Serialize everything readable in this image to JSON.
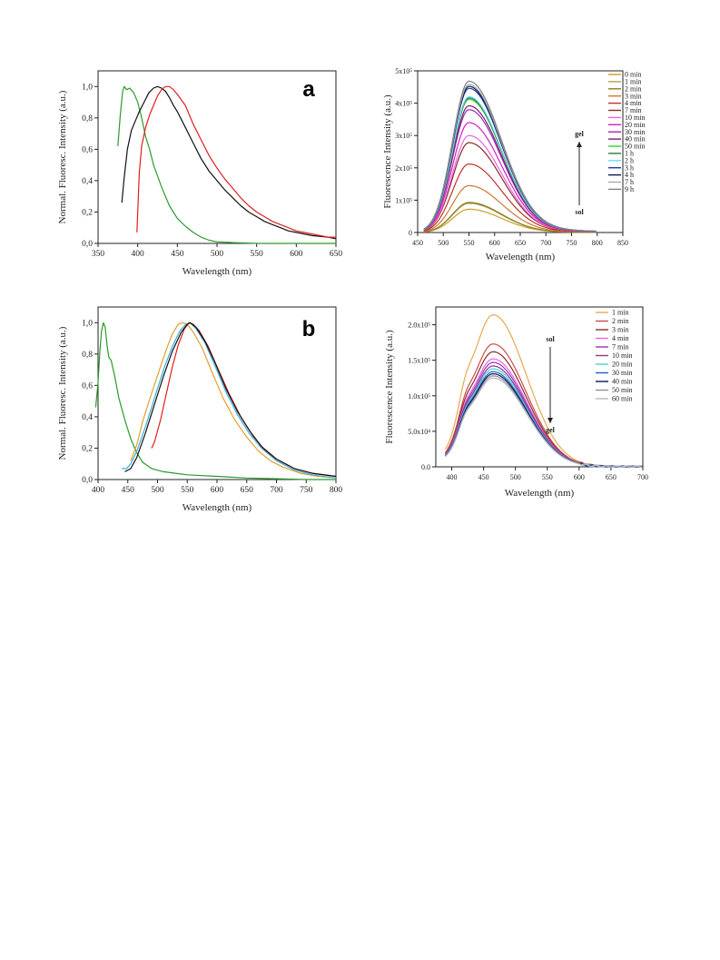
{
  "chart_data": [
    {
      "type": "line",
      "panel_letter": "a",
      "xlabel": "Wavelength (nm)",
      "ylabel": "Normal. Fluoresc. Intensity (a.u.)",
      "xlim": [
        350,
        650
      ],
      "ylim": [
        0,
        1.1
      ],
      "x_ticks": [
        "350",
        "400",
        "450",
        "500",
        "550",
        "600",
        "650"
      ],
      "y_ticks": [
        "0,0",
        "0,2",
        "0,4",
        "0,6",
        "0,8",
        "1,0"
      ],
      "series": [
        {
          "color": "#2a9a2a",
          "points": [
            [
              375,
              0.62
            ],
            [
              378,
              0.82
            ],
            [
              381,
              0.97
            ],
            [
              383,
              1.0
            ],
            [
              386,
              0.98
            ],
            [
              390,
              0.99
            ],
            [
              395,
              0.96
            ],
            [
              400,
              0.9
            ],
            [
              405,
              0.8
            ],
            [
              410,
              0.68
            ],
            [
              415,
              0.6
            ],
            [
              420,
              0.5
            ],
            [
              425,
              0.43
            ],
            [
              430,
              0.36
            ],
            [
              440,
              0.24
            ],
            [
              450,
              0.16
            ],
            [
              460,
              0.11
            ],
            [
              470,
              0.07
            ],
            [
              480,
              0.04
            ],
            [
              490,
              0.02
            ],
            [
              500,
              0.01
            ],
            [
              520,
              0.005
            ],
            [
              550,
              0.0
            ],
            [
              600,
              0.0
            ],
            [
              650,
              0.0
            ]
          ]
        },
        {
          "color": "#111111",
          "points": [
            [
              380,
              0.26
            ],
            [
              383,
              0.42
            ],
            [
              387,
              0.6
            ],
            [
              392,
              0.72
            ],
            [
              397,
              0.78
            ],
            [
              402,
              0.84
            ],
            [
              408,
              0.9
            ],
            [
              414,
              0.96
            ],
            [
              420,
              0.99
            ],
            [
              425,
              1.0
            ],
            [
              430,
              0.99
            ],
            [
              435,
              0.97
            ],
            [
              440,
              0.93
            ],
            [
              445,
              0.88
            ],
            [
              450,
              0.84
            ],
            [
              460,
              0.74
            ],
            [
              470,
              0.64
            ],
            [
              480,
              0.54
            ],
            [
              490,
              0.46
            ],
            [
              500,
              0.4
            ],
            [
              510,
              0.34
            ],
            [
              520,
              0.29
            ],
            [
              530,
              0.24
            ],
            [
              540,
              0.2
            ],
            [
              550,
              0.17
            ],
            [
              560,
              0.14
            ],
            [
              570,
              0.12
            ],
            [
              580,
              0.1
            ],
            [
              590,
              0.08
            ],
            [
              600,
              0.07
            ],
            [
              620,
              0.05
            ],
            [
              640,
              0.04
            ],
            [
              650,
              0.03
            ]
          ]
        },
        {
          "color": "#e0201e",
          "points": [
            [
              399,
              0.07
            ],
            [
              400,
              0.2
            ],
            [
              402,
              0.45
            ],
            [
              405,
              0.62
            ],
            [
              410,
              0.74
            ],
            [
              415,
              0.82
            ],
            [
              420,
              0.88
            ],
            [
              425,
              0.94
            ],
            [
              430,
              0.98
            ],
            [
              435,
              1.0
            ],
            [
              440,
              1.0
            ],
            [
              445,
              0.98
            ],
            [
              450,
              0.95
            ],
            [
              460,
              0.88
            ],
            [
              470,
              0.76
            ],
            [
              480,
              0.66
            ],
            [
              490,
              0.56
            ],
            [
              500,
              0.48
            ],
            [
              510,
              0.41
            ],
            [
              520,
              0.35
            ],
            [
              530,
              0.29
            ],
            [
              540,
              0.24
            ],
            [
              550,
              0.2
            ],
            [
              560,
              0.17
            ],
            [
              570,
              0.14
            ],
            [
              580,
              0.12
            ],
            [
              590,
              0.1
            ],
            [
              600,
              0.08
            ],
            [
              620,
              0.06
            ],
            [
              640,
              0.04
            ],
            [
              650,
              0.04
            ]
          ]
        }
      ]
    },
    {
      "type": "line",
      "xlabel": "Wavelength (nm)",
      "ylabel": "Fluorescence Intensity (a.u.)",
      "xlim": [
        450,
        850
      ],
      "ylim": [
        0,
        500000
      ],
      "x_ticks": [
        "450",
        "500",
        "550",
        "600",
        "650",
        "700",
        "750",
        "800",
        "850"
      ],
      "y_ticks": [
        "0",
        "1x10⁵",
        "2x10⁵",
        "3x10⁵",
        "4x10⁵",
        "5x10⁵"
      ],
      "annotations": {
        "top": "gel",
        "bottom": "sol",
        "arrow": "up"
      },
      "peak_x": 550,
      "series": [
        {
          "name": "0 min",
          "color": "#c8a028",
          "peak": 72000
        },
        {
          "name": "1 min",
          "color": "#b0a050",
          "peak": 90000
        },
        {
          "name": "2 min",
          "color": "#8a8020",
          "peak": 93000
        },
        {
          "name": "3 min",
          "color": "#d07830",
          "peak": 145000
        },
        {
          "name": "4 min",
          "color": "#c03030",
          "peak": 212000
        },
        {
          "name": "7 min",
          "color": "#8a2b2b",
          "peak": 278000
        },
        {
          "name": "10 min",
          "color": "#ee66dd",
          "peak": 300000
        },
        {
          "name": "20 min",
          "color": "#d020c0",
          "peak": 340000
        },
        {
          "name": "30 min",
          "color": "#9a2ab0",
          "peak": 380000
        },
        {
          "name": "40 min",
          "color": "#7a1a7a",
          "peak": 392000
        },
        {
          "name": "50 min",
          "color": "#30d030",
          "peak": 412000
        },
        {
          "name": "1 h",
          "color": "#2a7a40",
          "peak": 416000
        },
        {
          "name": "2 h",
          "color": "#70d8f0",
          "peak": 420000
        },
        {
          "name": "3 h",
          "color": "#1a3ab0",
          "peak": 446000
        },
        {
          "name": "4 h",
          "color": "#0a1a4a",
          "peak": 452000
        },
        {
          "name": "7 h",
          "color": "#a8a8a8",
          "peak": 458000
        },
        {
          "name": "9 h",
          "color": "#808080",
          "peak": 468000
        }
      ]
    },
    {
      "type": "line",
      "panel_letter": "b",
      "xlabel": "Wavelength (nm)",
      "ylabel": "Normal. Fluoresc. Intensity (a.u.)",
      "xlim": [
        400,
        800
      ],
      "ylim": [
        0,
        1.1
      ],
      "x_ticks": [
        "400",
        "450",
        "500",
        "550",
        "600",
        "650",
        "700",
        "750",
        "800"
      ],
      "y_ticks": [
        "0,0",
        "0,2",
        "0,4",
        "0,6",
        "0,8",
        "1,0"
      ],
      "series": [
        {
          "color": "#2a9a2a",
          "points": [
            [
              396,
              0.46
            ],
            [
              400,
              0.62
            ],
            [
              403,
              0.82
            ],
            [
              406,
              0.95
            ],
            [
              409,
              1.0
            ],
            [
              412,
              0.97
            ],
            [
              415,
              0.86
            ],
            [
              418,
              0.78
            ],
            [
              422,
              0.76
            ],
            [
              428,
              0.66
            ],
            [
              435,
              0.52
            ],
            [
              445,
              0.38
            ],
            [
              455,
              0.26
            ],
            [
              465,
              0.17
            ],
            [
              475,
              0.11
            ],
            [
              490,
              0.07
            ],
            [
              510,
              0.05
            ],
            [
              530,
              0.04
            ],
            [
              550,
              0.03
            ],
            [
              600,
              0.02
            ],
            [
              650,
              0.01
            ],
            [
              700,
              0.005
            ],
            [
              750,
              0.0
            ],
            [
              800,
              0.0
            ]
          ]
        },
        {
          "color": "#e2a030",
          "points": [
            [
              455,
              0.12
            ],
            [
              465,
              0.22
            ],
            [
              475,
              0.37
            ],
            [
              490,
              0.55
            ],
            [
              505,
              0.72
            ],
            [
              515,
              0.83
            ],
            [
              525,
              0.93
            ],
            [
              535,
              0.99
            ],
            [
              542,
              1.0
            ],
            [
              550,
              0.99
            ],
            [
              560,
              0.94
            ],
            [
              575,
              0.84
            ],
            [
              590,
              0.7
            ],
            [
              610,
              0.52
            ],
            [
              630,
              0.38
            ],
            [
              650,
              0.27
            ],
            [
              670,
              0.18
            ],
            [
              690,
              0.12
            ],
            [
              710,
              0.08
            ],
            [
              740,
              0.04
            ],
            [
              770,
              0.02
            ],
            [
              800,
              0.01
            ]
          ]
        },
        {
          "color": "#3ab0e0",
          "points": [
            [
              440,
              0.07
            ],
            [
              448,
              0.07
            ],
            [
              455,
              0.1
            ],
            [
              465,
              0.18
            ],
            [
              480,
              0.34
            ],
            [
              495,
              0.52
            ],
            [
              510,
              0.7
            ],
            [
              525,
              0.85
            ],
            [
              538,
              0.95
            ],
            [
              548,
              0.99
            ],
            [
              555,
              1.0
            ],
            [
              565,
              0.96
            ],
            [
              580,
              0.87
            ],
            [
              595,
              0.74
            ],
            [
              615,
              0.56
            ],
            [
              635,
              0.41
            ],
            [
              655,
              0.29
            ],
            [
              675,
              0.2
            ],
            [
              700,
              0.12
            ],
            [
              730,
              0.06
            ],
            [
              760,
              0.03
            ],
            [
              800,
              0.01
            ]
          ]
        },
        {
          "color": "#e0201e",
          "points": [
            [
              490,
              0.2
            ],
            [
              495,
              0.24
            ],
            [
              505,
              0.38
            ],
            [
              515,
              0.55
            ],
            [
              525,
              0.72
            ],
            [
              535,
              0.86
            ],
            [
              545,
              0.96
            ],
            [
              553,
              1.0
            ],
            [
              560,
              0.99
            ],
            [
              570,
              0.95
            ],
            [
              585,
              0.85
            ],
            [
              600,
              0.72
            ],
            [
              620,
              0.55
            ],
            [
              640,
              0.4
            ],
            [
              660,
              0.28
            ],
            [
              680,
              0.19
            ],
            [
              700,
              0.13
            ],
            [
              730,
              0.07
            ],
            [
              760,
              0.04
            ],
            [
              800,
              0.02
            ]
          ]
        },
        {
          "color": "#111111",
          "points": [
            [
              445,
              0.05
            ],
            [
              455,
              0.07
            ],
            [
              465,
              0.14
            ],
            [
              480,
              0.3
            ],
            [
              495,
              0.48
            ],
            [
              510,
              0.66
            ],
            [
              525,
              0.82
            ],
            [
              540,
              0.94
            ],
            [
              550,
              0.99
            ],
            [
              555,
              1.0
            ],
            [
              565,
              0.97
            ],
            [
              580,
              0.88
            ],
            [
              595,
              0.76
            ],
            [
              615,
              0.58
            ],
            [
              635,
              0.43
            ],
            [
              655,
              0.31
            ],
            [
              675,
              0.21
            ],
            [
              700,
              0.13
            ],
            [
              730,
              0.07
            ],
            [
              760,
              0.04
            ],
            [
              800,
              0.02
            ]
          ]
        }
      ]
    },
    {
      "type": "line",
      "xlabel": "Wavelength (nm)",
      "ylabel": "Fluorescence Intensity (a.u.)",
      "xlim": [
        375,
        700
      ],
      "ylim": [
        0,
        225000
      ],
      "x_ticks": [
        "400",
        "450",
        "500",
        "550",
        "600",
        "650",
        "700"
      ],
      "y_ticks": [
        "0.0",
        "5.0x10⁴",
        "1.0x10⁵",
        "1.5x10⁵",
        "2.0x10⁵"
      ],
      "annotations": {
        "top": "sol",
        "bottom": "gel",
        "arrow": "down"
      },
      "peak_x": 465,
      "series": [
        {
          "name": "1 min",
          "color": "#e8a850",
          "peak": 214000
        },
        {
          "name": "2 min",
          "color": "#d04a4a",
          "peak": 173000
        },
        {
          "name": "3 min",
          "color": "#8a2b2b",
          "peak": 162000
        },
        {
          "name": "4 min",
          "color": "#ee66dd",
          "peak": 152000
        },
        {
          "name": "7 min",
          "color": "#a030c0",
          "peak": 147000
        },
        {
          "name": "10 min",
          "color": "#8a3a8a",
          "peak": 142000
        },
        {
          "name": "20 min",
          "color": "#40d8d0",
          "peak": 138000
        },
        {
          "name": "30 min",
          "color": "#2a5ad0",
          "peak": 134000
        },
        {
          "name": "40 min",
          "color": "#0a1a4a",
          "peak": 131000
        },
        {
          "name": "50 min",
          "color": "#909090",
          "peak": 128000
        },
        {
          "name": "60 min",
          "color": "#b8b8c8",
          "peak": 125000
        }
      ]
    }
  ]
}
